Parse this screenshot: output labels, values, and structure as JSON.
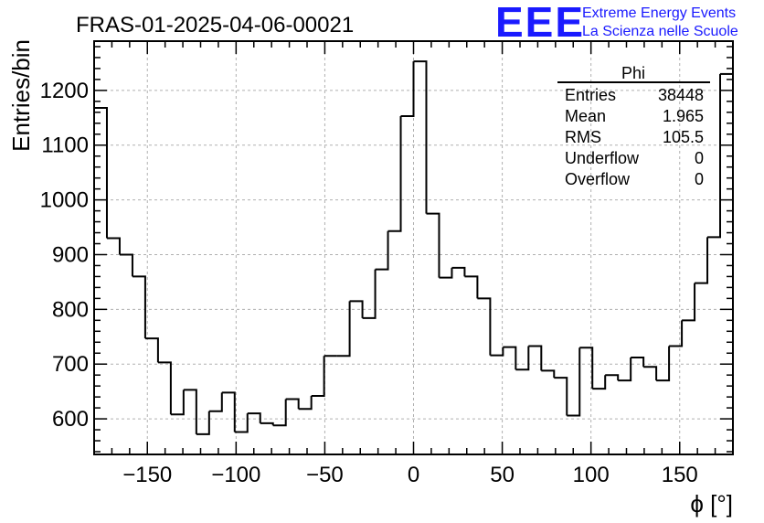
{
  "title": "FRAS-01-2025-04-06-00021",
  "brand": {
    "logo_text": "EEE",
    "line1": "Extreme Energy Events",
    "line2": "La Scienza nelle Scuole",
    "color": "#1a1aff"
  },
  "stats": {
    "name": "Phi",
    "rows": [
      {
        "label": "Entries",
        "value": "38448"
      },
      {
        "label": "Mean",
        "value": "1.965"
      },
      {
        "label": "RMS",
        "value": "105.5"
      },
      {
        "label": "Underflow",
        "value": "0"
      },
      {
        "label": "Overflow",
        "value": "0"
      }
    ]
  },
  "chart_data": {
    "type": "histogram",
    "title": "FRAS-01-2025-04-06-00021",
    "xlabel": "ϕ [°]",
    "ylabel": "Entries/bin",
    "xlim": [
      -180,
      180
    ],
    "ylim": [
      535,
      1290
    ],
    "grid": true,
    "bin_width": 7.2,
    "xticks": [
      -150,
      -100,
      -50,
      0,
      50,
      100,
      150
    ],
    "xtick_labels": [
      "−150",
      "−100",
      "−50",
      "0",
      "50",
      "100",
      "150"
    ],
    "yticks": [
      600,
      700,
      800,
      900,
      1000,
      1100,
      1200
    ],
    "ytick_labels": [
      "600",
      "700",
      "800",
      "900",
      "1000",
      "1100",
      "1200"
    ],
    "values": [
      1168,
      930,
      900,
      860,
      747,
      703,
      608,
      653,
      572,
      614,
      648,
      576,
      610,
      592,
      588,
      636,
      618,
      642,
      715,
      715,
      815,
      784,
      873,
      943,
      1153,
      1253,
      975,
      858,
      876,
      860,
      820,
      716,
      731,
      690,
      733,
      688,
      675,
      606,
      730,
      655,
      680,
      670,
      712,
      695,
      670,
      733,
      780,
      848,
      932,
      1230
    ]
  }
}
